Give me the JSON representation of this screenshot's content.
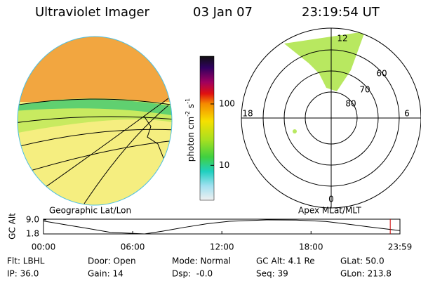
{
  "header": {
    "title": "Ultraviolet Imager",
    "date": "03 Jan 07",
    "time": "23:19:54 UT"
  },
  "colorbar": {
    "label_parts": [
      "photon cm",
      "-2",
      "s",
      "-1"
    ],
    "log": true,
    "lim": [
      2.7,
      600
    ],
    "ticks": [
      100,
      10
    ]
  },
  "polar": {
    "mlt_labels": [
      "12",
      "18",
      "6",
      "0"
    ],
    "lat_labels": [
      "60",
      "70",
      "80"
    ]
  },
  "panel_labels": [
    "Geographic Lat/Lon",
    "Apex MLat/MLT"
  ],
  "altitude_plot": {
    "ylabel": "GC Alt",
    "ylim": [
      1.8,
      9.0
    ],
    "yticks": [
      {
        "value": 9.0,
        "label": "9.0"
      },
      {
        "value": 1.8,
        "label": "1.8"
      }
    ],
    "xlim": [
      0,
      23.983
    ],
    "xticks": [
      {
        "value": 0,
        "label": "00:00"
      },
      {
        "value": 6,
        "label": "06:00"
      },
      {
        "value": 12,
        "label": "12:00"
      },
      {
        "value": 18,
        "label": "18:00"
      },
      {
        "value": 23.983,
        "label": "23:59"
      }
    ],
    "x": [
      0,
      1.5,
      3,
      4.5,
      6.8,
      8,
      9.5,
      11,
      12.5,
      15,
      17,
      19,
      20.5,
      22,
      23.33,
      23.983
    ],
    "values": [
      8.4,
      6.5,
      4.6,
      2.6,
      1.8,
      3.2,
      5.2,
      7.0,
      8.3,
      9.0,
      8.9,
      8.2,
      6.8,
      5.3,
      4.1,
      3.5
    ],
    "marker": 23.33,
    "color": "#000000",
    "marker_color": "#cc0000"
  },
  "info": [
    [
      "Flt: LBHL",
      "IP: 36.0"
    ],
    [
      "Door: Open",
      "Gain: 14"
    ],
    [
      "Mode: Normal",
      "Dsp:  -0.0"
    ],
    [
      "GC Alt: 4.1 Re",
      "Seq: 39"
    ],
    [
      "GLat: 50.0",
      "GLon: 213.8"
    ]
  ]
}
